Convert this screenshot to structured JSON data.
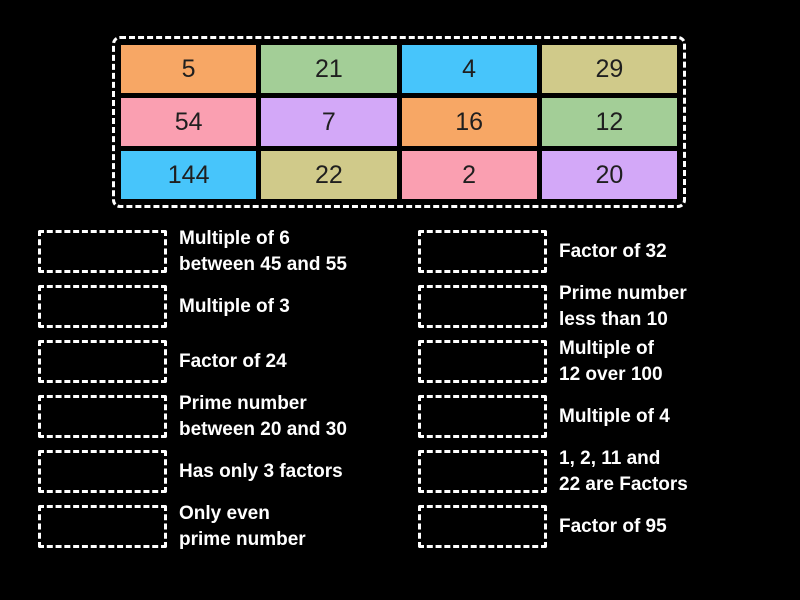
{
  "colors": {
    "background": "#000000",
    "clue_text": "#ffffff",
    "tile_text": "#1f1f1f",
    "dashed_border": "#ffffff",
    "tile_orange": "#F7A765",
    "tile_green": "#A3CE97",
    "tile_blue": "#47C5FB",
    "tile_khaki": "#D0CA8A",
    "tile_pink": "#FA9FB1",
    "tile_lavender": "#D3A8F8"
  },
  "tiles": [
    {
      "label": "5",
      "color": "#F7A765"
    },
    {
      "label": "21",
      "color": "#A3CE97"
    },
    {
      "label": "4",
      "color": "#47C5FB"
    },
    {
      "label": "29",
      "color": "#D0CA8A"
    },
    {
      "label": "54",
      "color": "#FA9FB1"
    },
    {
      "label": "7",
      "color": "#D3A8F8"
    },
    {
      "label": "16",
      "color": "#F7A765"
    },
    {
      "label": "12",
      "color": "#A3CE97"
    },
    {
      "label": "144",
      "color": "#47C5FB"
    },
    {
      "label": "22",
      "color": "#D0CA8A"
    },
    {
      "label": "2",
      "color": "#FA9FB1"
    },
    {
      "label": "20",
      "color": "#D3A8F8"
    }
  ],
  "clues_left": [
    {
      "text": "Multiple of 6\nbetween 45 and 55"
    },
    {
      "text": "Multiple of 3"
    },
    {
      "text": "Factor of 24"
    },
    {
      "text": "Prime number\nbetween 20 and 30"
    },
    {
      "text": "Has only 3 factors"
    },
    {
      "text": "Only even\nprime number"
    }
  ],
  "clues_right": [
    {
      "text": "Factor of 32"
    },
    {
      "text": "Prime number\nless than 10"
    },
    {
      "text": "Multiple of\n12 over 100"
    },
    {
      "text": "Multiple of 4"
    },
    {
      "text": "1, 2, 11 and\n22 are Factors"
    },
    {
      "text": "Factor of 95"
    }
  ]
}
